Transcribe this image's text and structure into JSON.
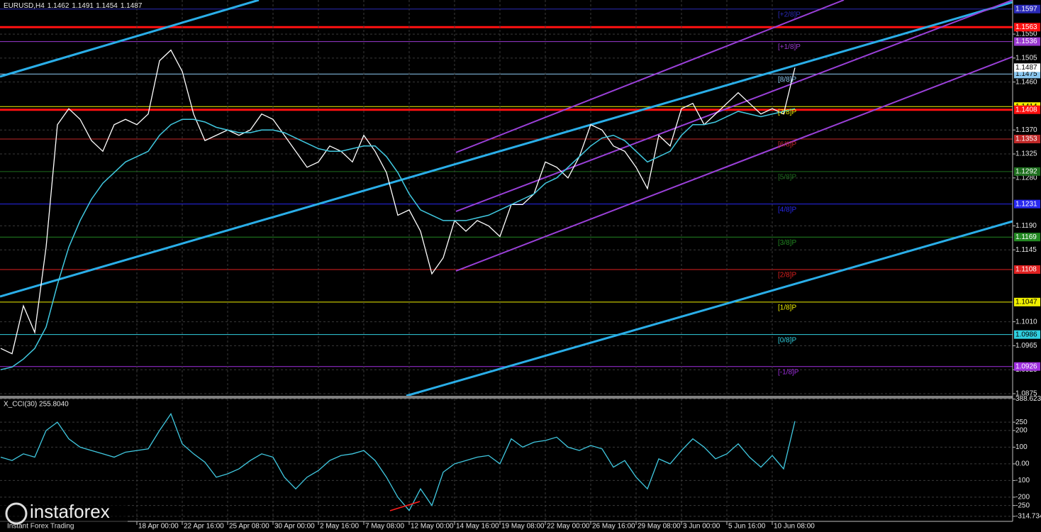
{
  "chart_data": [
    {
      "type": "line",
      "title": "EURUSD,H4",
      "ohlc": [
        1.1462,
        1.1491,
        1.1454,
        1.1487
      ],
      "series": [
        {
          "color": "#ffffff",
          "values": [
            1.096,
            1.095,
            1.104,
            1.099,
            1.115,
            1.138,
            1.141,
            1.139,
            1.135,
            1.133,
            1.138,
            1.139,
            1.138,
            1.14,
            1.15,
            1.152,
            1.148,
            1.14,
            1.135,
            1.136,
            1.137,
            1.136,
            1.137,
            1.14,
            1.139,
            1.136,
            1.133,
            1.13,
            1.131,
            1.134,
            1.133,
            1.131,
            1.136,
            1.133,
            1.129,
            1.121,
            1.122,
            1.118,
            1.11,
            1.113,
            1.12,
            1.118,
            1.12,
            1.119,
            1.117,
            1.123,
            1.123,
            1.125,
            1.131,
            1.13,
            1.128,
            1.132,
            1.138,
            1.137,
            1.134,
            1.133,
            1.13,
            1.126,
            1.136,
            1.134,
            1.141,
            1.142,
            1.138,
            1.14,
            1.142,
            1.144,
            1.142,
            1.14,
            1.141,
            1.14,
            1.1487
          ]
        },
        {
          "color": "#40c8e0",
          "values": [
            1.092,
            1.0925,
            1.094,
            1.096,
            1.1,
            1.108,
            1.115,
            1.12,
            1.124,
            1.127,
            1.129,
            1.131,
            1.132,
            1.133,
            1.136,
            1.138,
            1.139,
            1.139,
            1.1385,
            1.1375,
            1.137,
            1.1365,
            1.1365,
            1.137,
            1.137,
            1.1365,
            1.1355,
            1.1345,
            1.1335,
            1.133,
            1.133,
            1.1335,
            1.134,
            1.134,
            1.132,
            1.129,
            1.125,
            1.122,
            1.121,
            1.12,
            1.12,
            1.12,
            1.1205,
            1.121,
            1.122,
            1.123,
            1.124,
            1.125,
            1.127,
            1.128,
            1.13,
            1.132,
            1.134,
            1.1355,
            1.136,
            1.135,
            1.133,
            1.131,
            1.132,
            1.133,
            1.136,
            1.138,
            1.138,
            1.1385,
            1.1395,
            1.1405,
            1.14,
            1.1395,
            1.14,
            1.1405,
            1.141
          ]
        }
      ],
      "ylim": [
        1.0871,
        1.1614
      ],
      "yticks": [
        {
          "value": 1.155,
          "label": "1.1550"
        },
        1.1505,
        {
          "value": 1.146,
          "label": "1.1460"
        },
        {
          "value": 1.137,
          "label": "1.1370"
        },
        1.1325,
        {
          "value": 1.128,
          "label": "1.1280"
        },
        {
          "value": 1.119,
          "label": "1.1190"
        },
        1.1145,
        {
          "value": 1.101,
          "label": "1.1010"
        },
        1.0965,
        {
          "value": 1.092,
          "label": "1.0920"
        },
        1.0875
      ],
      "grid": true,
      "hlines": [
        {
          "value": 1.1563,
          "color": "#ff1010"
        },
        {
          "value": 1.1408,
          "color": "#ff1010"
        }
      ],
      "levels": [
        {
          "value": 1.1597,
          "label": "[+2/8]P",
          "color": "#2a2ab8"
        },
        {
          "value": 1.1536,
          "label": "[+1/8]P",
          "color": "#9a3ad0"
        },
        {
          "value": 1.1475,
          "label": "[8/8]P",
          "color": "#8cc8f0"
        },
        {
          "value": 1.1414,
          "label": "[7/8]P",
          "color": "#f0f000"
        },
        {
          "value": 1.1353,
          "label": "[6/8]P",
          "color": "#c02828"
        },
        {
          "value": 1.1292,
          "label": "[5/8]P",
          "color": "#1e6e1e"
        },
        {
          "value": 1.1231,
          "label": "[4/8]P",
          "color": "#2828f0"
        },
        {
          "value": 1.1169,
          "label": "[3/8]P",
          "color": "#228822"
        },
        {
          "value": 1.1108,
          "label": "[2/8]P",
          "color": "#e02020"
        },
        {
          "value": 1.1047,
          "label": "[1/8]P",
          "color": "#f0f000"
        },
        {
          "value": 1.0986,
          "label": "[0/8]P",
          "color": "#30d0e0"
        },
        {
          "value": 1.0926,
          "label": "[-1/8]P",
          "color": "#a030e0"
        }
      ]
    },
    {
      "type": "line",
      "title": "X_CCI(30) 255.8040",
      "x": [
        null,
        null,
        null,
        null,
        null,
        null,
        null,
        null,
        null,
        null,
        null,
        null,
        "18 Apr 00:00",
        null,
        null,
        null,
        "22 Apr 16:00",
        null,
        null,
        null,
        "25 Apr 08:00",
        null,
        null,
        null,
        "30 Apr 00:00",
        null,
        null,
        null,
        "2 May 16:00",
        null,
        null,
        null,
        "7 May 08:00",
        null,
        null,
        null,
        "12 May 00:00",
        null,
        null,
        null,
        "14 May 16:00",
        null,
        null,
        null,
        "19 May 08:00",
        null,
        null,
        null,
        "22 May 00:00",
        null,
        null,
        null,
        "26 May 16:00",
        null,
        null,
        null,
        "29 May 08:00",
        null,
        null,
        null,
        "3 Jun 00:00",
        null,
        null,
        null,
        "5 Jun 16:00",
        null,
        null,
        null,
        "10 Jun 08:00",
        null,
        null
      ],
      "series": [
        {
          "color": "#40c8e0",
          "values": [
            40,
            20,
            60,
            40,
            200,
            250,
            150,
            100,
            80,
            60,
            40,
            70,
            80,
            90,
            200,
            300,
            120,
            60,
            10,
            -80,
            -60,
            -30,
            20,
            60,
            40,
            -80,
            -150,
            -80,
            -40,
            20,
            50,
            60,
            80,
            20,
            -80,
            -200,
            -280,
            -150,
            -250,
            -50,
            0,
            20,
            40,
            50,
            0,
            150,
            100,
            130,
            140,
            160,
            100,
            80,
            110,
            90,
            -20,
            20,
            -80,
            -150,
            30,
            0,
            80,
            150,
            100,
            30,
            60,
            120,
            40,
            -20,
            50,
            -30,
            255.8
          ]
        }
      ],
      "ylim": [
        -345,
        391
      ],
      "yticks": [
        388.6237,
        250,
        200,
        100,
        {
          "value": 0,
          "label": "0.00"
        },
        -100,
        -200,
        -250,
        -314.734
      ],
      "grid": true
    }
  ],
  "watermark": {
    "brand": "instaforex",
    "tagline": "Instant Forex Trading"
  }
}
